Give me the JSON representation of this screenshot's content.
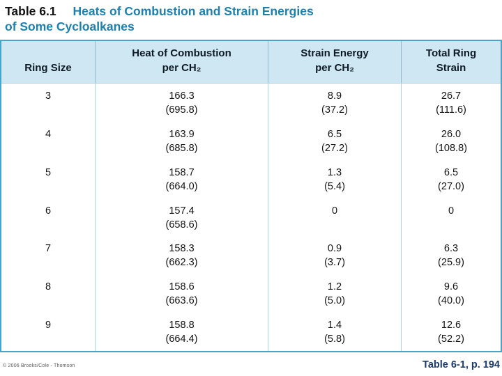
{
  "title": {
    "label": "Table 6.1",
    "text_line1": "Heats of Combustion and Strain Energies",
    "text_line2": "of Some Cycloalkanes"
  },
  "table": {
    "columns": [
      {
        "lines": [
          "Ring Size"
        ]
      },
      {
        "lines": [
          "Heat of Combustion",
          "per CH₂"
        ]
      },
      {
        "lines": [
          "Strain Energy",
          "per CH₂"
        ]
      },
      {
        "lines": [
          "Total Ring",
          "Strain"
        ]
      }
    ],
    "rows": [
      {
        "ring": "3",
        "heat": "166.3",
        "heat_alt": "(695.8)",
        "strain": "8.9",
        "strain_alt": "(37.2)",
        "total": "26.7",
        "total_alt": "(111.6)"
      },
      {
        "ring": "4",
        "heat": "163.9",
        "heat_alt": "(685.8)",
        "strain": "6.5",
        "strain_alt": "(27.2)",
        "total": "26.0",
        "total_alt": "(108.8)"
      },
      {
        "ring": "5",
        "heat": "158.7",
        "heat_alt": "(664.0)",
        "strain": "1.3",
        "strain_alt": "(5.4)",
        "total": "6.5",
        "total_alt": "(27.0)"
      },
      {
        "ring": "6",
        "heat": "157.4",
        "heat_alt": "(658.6)",
        "strain": "0",
        "strain_alt": "",
        "total": "0",
        "total_alt": ""
      },
      {
        "ring": "7",
        "heat": "158.3",
        "heat_alt": "(662.3)",
        "strain": "0.9",
        "strain_alt": "(3.7)",
        "total": "6.3",
        "total_alt": "(25.9)"
      },
      {
        "ring": "8",
        "heat": "158.6",
        "heat_alt": "(663.6)",
        "strain": "1.2",
        "strain_alt": "(5.0)",
        "total": "9.6",
        "total_alt": "(40.0)"
      },
      {
        "ring": "9",
        "heat": "158.8",
        "heat_alt": "(664.4)",
        "strain": "1.4",
        "strain_alt": "(5.8)",
        "total": "12.6",
        "total_alt": "(52.2)"
      }
    ]
  },
  "footer": {
    "copyright": "© 2006 Brooks/Cole - Thomson",
    "reference": "Table 6-1, p. 194"
  },
  "colors": {
    "accent_teal": "#1d80ad",
    "header_background": "#cfe7f3",
    "table_border": "#4aa3c9",
    "reference_navy": "#1b3a6b"
  }
}
